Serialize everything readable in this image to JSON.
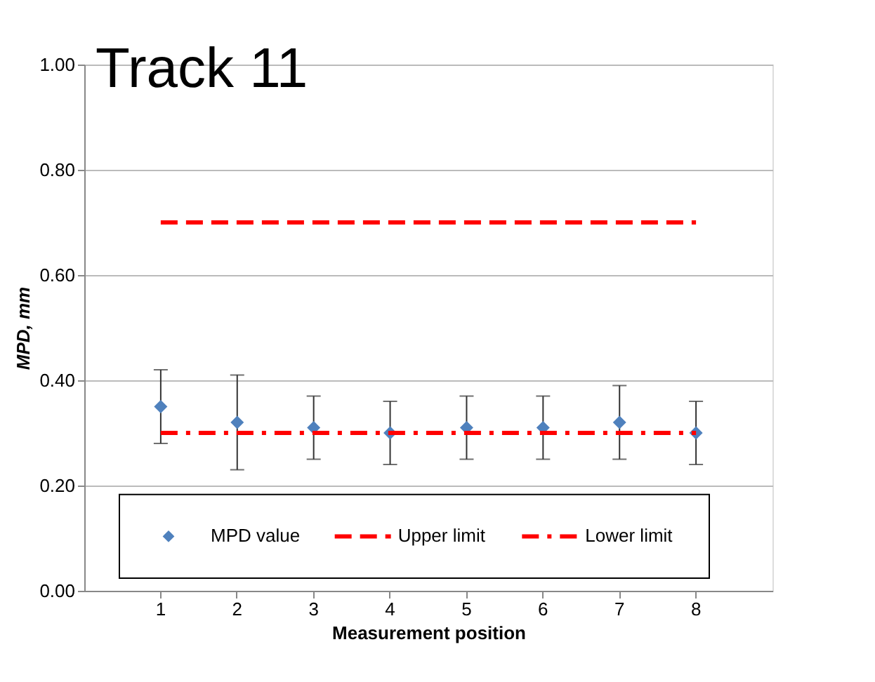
{
  "chart_data": {
    "type": "scatter",
    "title": "Track 11",
    "xlabel": "Measurement position",
    "ylabel": "MPD, mm",
    "categories": [
      "1",
      "2",
      "3",
      "4",
      "5",
      "6",
      "7",
      "8"
    ],
    "series": [
      {
        "name": "MPD value",
        "color": "#4f81bd",
        "marker": "diamond",
        "values": [
          0.35,
          0.32,
          0.31,
          0.3,
          0.31,
          0.31,
          0.32,
          0.3
        ],
        "errors": [
          [
            0.28,
            0.42
          ],
          [
            0.23,
            0.41
          ],
          [
            0.25,
            0.37
          ],
          [
            0.24,
            0.36
          ],
          [
            0.25,
            0.37
          ],
          [
            0.25,
            0.37
          ],
          [
            0.25,
            0.39
          ],
          [
            0.24,
            0.36
          ]
        ]
      },
      {
        "name": "Upper limit",
        "type": "line",
        "color": "#ff0000",
        "line_style": "dashed",
        "values": [
          0.7,
          0.7,
          0.7,
          0.7,
          0.7,
          0.7,
          0.7,
          0.7
        ]
      },
      {
        "name": "Lower limit",
        "type": "line",
        "color": "#ff0000",
        "line_style": "dashdot",
        "values": [
          0.3,
          0.3,
          0.3,
          0.3,
          0.3,
          0.3,
          0.3,
          0.3
        ]
      }
    ],
    "ylim": [
      0,
      1
    ],
    "yticks": [
      {
        "value": 0,
        "label": "0.00"
      },
      {
        "value": 0.2,
        "label": "0.20"
      },
      {
        "value": 0.4,
        "label": "0.40"
      },
      {
        "value": 0.6,
        "label": "0.60"
      },
      {
        "value": 0.8,
        "label": "0.80"
      },
      {
        "value": 1,
        "label": "1.00"
      }
    ],
    "grid": "y",
    "legend": "bottom"
  }
}
